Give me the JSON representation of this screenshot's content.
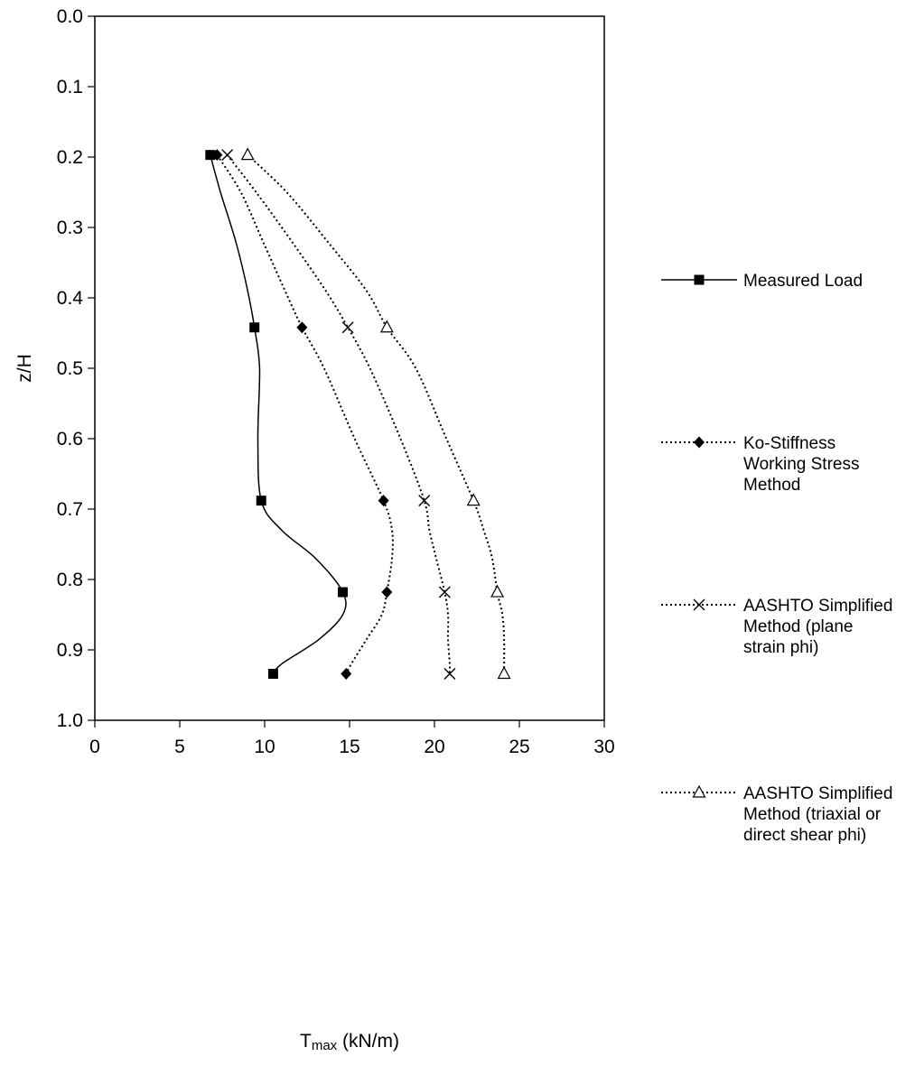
{
  "chart_data": {
    "type": "line",
    "xlabel_main": "T",
    "xlabel_sub": "max",
    "xlabel_rest": " (kN/m)",
    "ylabel": "z/H",
    "xlim": [
      0,
      30
    ],
    "ylim": [
      0,
      1.0
    ],
    "y_inverted": true,
    "x_ticks": [
      "0",
      "5",
      "10",
      "15",
      "20",
      "25",
      "30"
    ],
    "y_ticks": [
      "0.0",
      "0.1",
      "0.2",
      "0.3",
      "0.4",
      "0.5",
      "0.6",
      "0.7",
      "0.8",
      "0.9",
      "1.0"
    ],
    "grid": false,
    "legend_position": "right",
    "series": [
      {
        "name": "Measured Load",
        "legend_lines": [
          "Measured Load"
        ],
        "line_style": "solid",
        "marker": "square",
        "color": "#000000",
        "points": [
          [
            6.8,
            0.197
          ],
          [
            9.4,
            0.442
          ],
          [
            9.8,
            0.688
          ],
          [
            14.6,
            0.818
          ],
          [
            10.5,
            0.934
          ]
        ],
        "curve": [
          [
            6.8,
            0.197
          ],
          [
            7.4,
            0.25
          ],
          [
            8.3,
            0.32
          ],
          [
            9.0,
            0.39
          ],
          [
            9.4,
            0.442
          ],
          [
            9.7,
            0.5
          ],
          [
            9.6,
            0.6
          ],
          [
            9.8,
            0.688
          ],
          [
            11.0,
            0.73
          ],
          [
            13.0,
            0.77
          ],
          [
            14.6,
            0.818
          ],
          [
            14.6,
            0.85
          ],
          [
            13.2,
            0.885
          ],
          [
            11.0,
            0.92
          ],
          [
            10.5,
            0.934
          ]
        ]
      },
      {
        "name": "Ko-Stiffness Working Stress Method",
        "legend_lines": [
          "Ko-Stiffness",
          "Working Stress",
          "Method"
        ],
        "line_style": "dotted",
        "marker": "diamond",
        "color": "#000000",
        "points": [
          [
            7.2,
            0.197
          ],
          [
            12.2,
            0.442
          ],
          [
            17.0,
            0.688
          ],
          [
            17.2,
            0.818
          ],
          [
            14.8,
            0.934
          ]
        ],
        "curve": [
          [
            7.2,
            0.197
          ],
          [
            8.6,
            0.25
          ],
          [
            9.9,
            0.32
          ],
          [
            11.2,
            0.39
          ],
          [
            12.2,
            0.442
          ],
          [
            13.5,
            0.5
          ],
          [
            15.3,
            0.6
          ],
          [
            17.0,
            0.688
          ],
          [
            17.5,
            0.73
          ],
          [
            17.5,
            0.77
          ],
          [
            17.2,
            0.818
          ],
          [
            16.9,
            0.85
          ],
          [
            16.0,
            0.885
          ],
          [
            15.1,
            0.92
          ],
          [
            14.8,
            0.934
          ]
        ]
      },
      {
        "name": "AASHTO Simplified Method (plane strain phi)",
        "legend_lines": [
          "AASHTO Simplified",
          "Method (plane",
          "strain phi)"
        ],
        "line_style": "dotted",
        "marker": "x",
        "color": "#000000",
        "points": [
          [
            7.8,
            0.197
          ],
          [
            14.9,
            0.442
          ],
          [
            19.4,
            0.688
          ],
          [
            20.6,
            0.818
          ],
          [
            20.9,
            0.934
          ]
        ],
        "curve": [
          [
            7.8,
            0.197
          ],
          [
            9.5,
            0.25
          ],
          [
            11.6,
            0.32
          ],
          [
            13.6,
            0.39
          ],
          [
            14.9,
            0.442
          ],
          [
            16.2,
            0.5
          ],
          [
            18.0,
            0.6
          ],
          [
            19.4,
            0.688
          ],
          [
            19.7,
            0.73
          ],
          [
            20.1,
            0.77
          ],
          [
            20.6,
            0.818
          ],
          [
            20.8,
            0.85
          ],
          [
            20.8,
            0.885
          ],
          [
            20.9,
            0.92
          ],
          [
            20.9,
            0.934
          ]
        ]
      },
      {
        "name": "AASHTO Simplified Method (triaxial or direct shear phi)",
        "legend_lines": [
          "AASHTO Simplified",
          "Method (triaxial or",
          "direct shear phi)"
        ],
        "line_style": "dotted",
        "marker": "triangle-open",
        "color": "#000000",
        "points": [
          [
            9.0,
            0.197
          ],
          [
            17.2,
            0.442
          ],
          [
            22.3,
            0.688
          ],
          [
            23.7,
            0.818
          ],
          [
            24.1,
            0.934
          ]
        ],
        "curve": [
          [
            9.0,
            0.197
          ],
          [
            11.3,
            0.25
          ],
          [
            13.7,
            0.32
          ],
          [
            16.0,
            0.39
          ],
          [
            17.2,
            0.442
          ],
          [
            18.9,
            0.5
          ],
          [
            20.7,
            0.6
          ],
          [
            22.3,
            0.688
          ],
          [
            22.9,
            0.73
          ],
          [
            23.4,
            0.77
          ],
          [
            23.7,
            0.818
          ],
          [
            24.0,
            0.85
          ],
          [
            24.1,
            0.885
          ],
          [
            24.1,
            0.92
          ],
          [
            24.1,
            0.934
          ]
        ]
      }
    ]
  }
}
